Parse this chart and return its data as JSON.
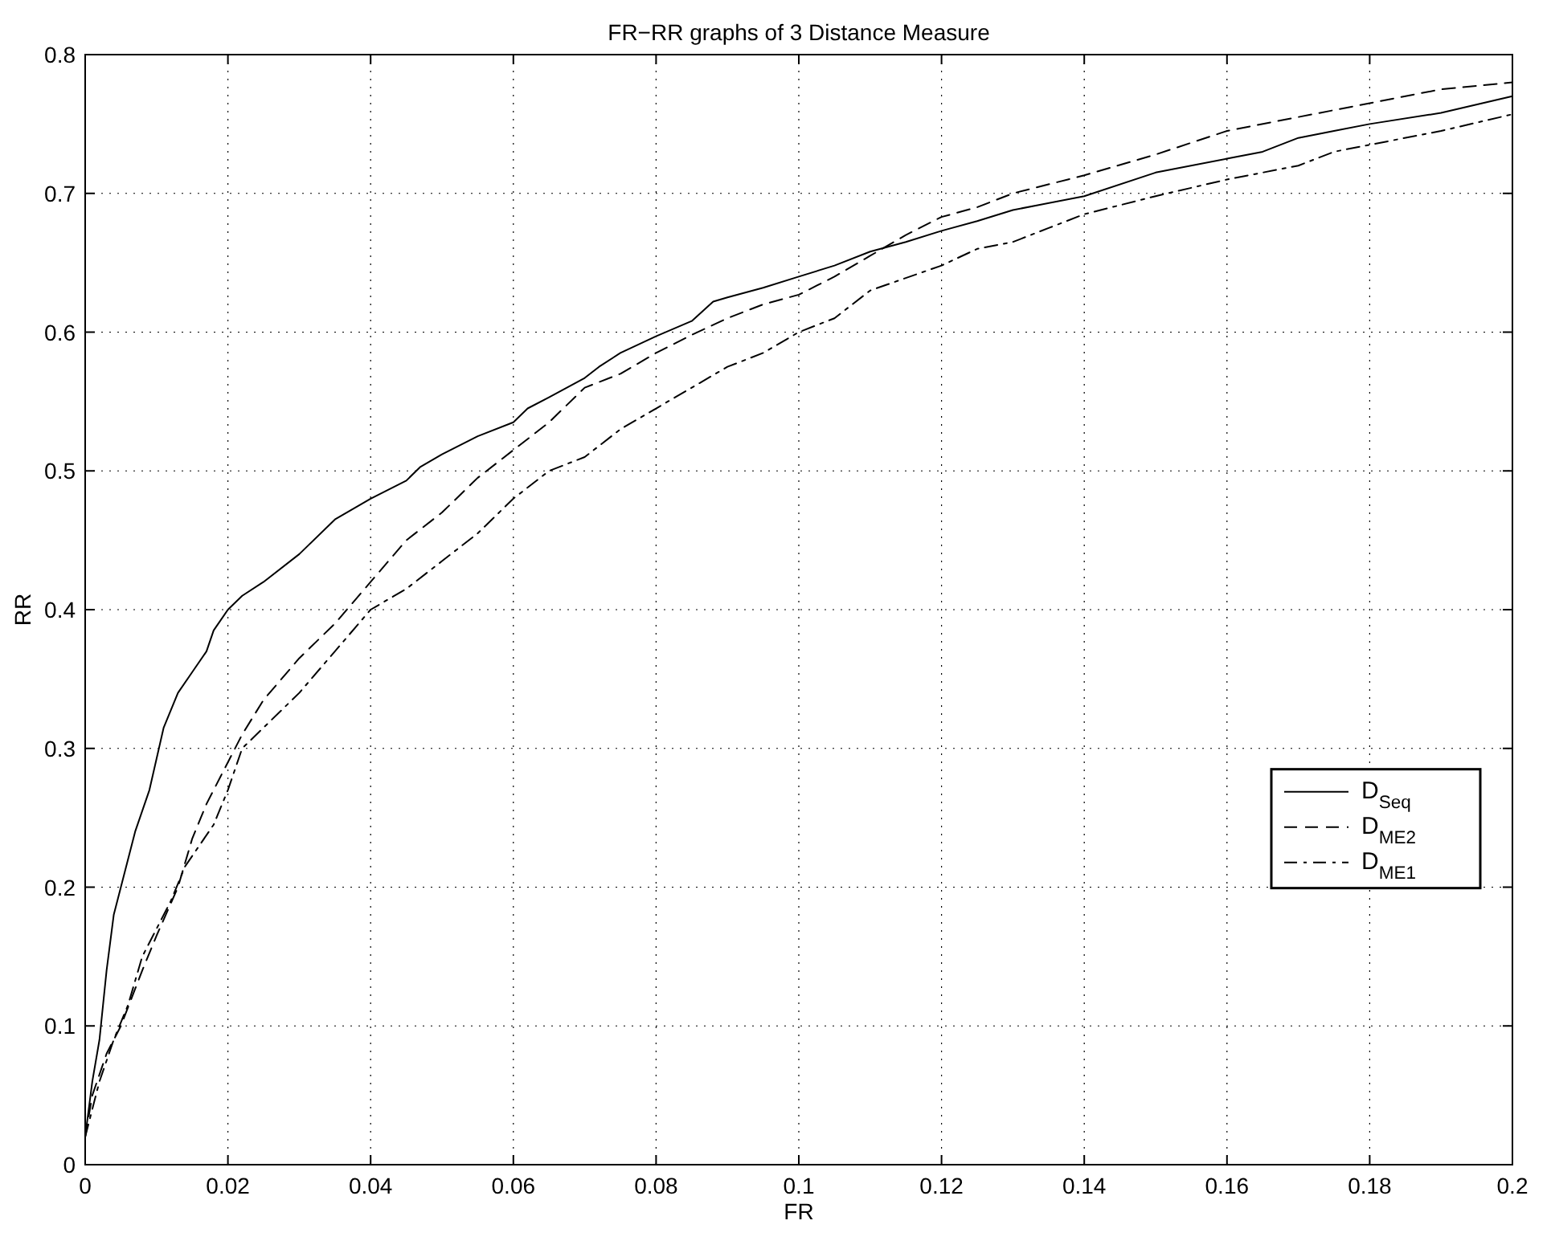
{
  "chart_data": {
    "type": "line",
    "title": "FR−RR graphs of 3 Distance Measure",
    "xlabel": "FR",
    "ylabel": "RR",
    "xlim": [
      0,
      0.2
    ],
    "ylim": [
      0,
      0.8
    ],
    "xticks": [
      0,
      0.02,
      0.04,
      0.06,
      0.08,
      0.1,
      0.12,
      0.14,
      0.16,
      0.18,
      0.2
    ],
    "yticks": [
      0,
      0.1,
      0.2,
      0.3,
      0.4,
      0.5,
      0.6,
      0.7,
      0.8
    ],
    "grid": true,
    "legend": "right",
    "marker": "none",
    "series": [
      {
        "name": "D$_{Seq}$",
        "color": "#000000",
        "line_style": "solid",
        "x": [
          0,
          0.001,
          0.002,
          0.003,
          0.004,
          0.005,
          0.007,
          0.009,
          0.011,
          0.013,
          0.015,
          0.017,
          0.018,
          0.02,
          0.022,
          0.025,
          0.03,
          0.035,
          0.04,
          0.045,
          0.047,
          0.05,
          0.055,
          0.06,
          0.062,
          0.065,
          0.07,
          0.072,
          0.075,
          0.08,
          0.085,
          0.088,
          0.09,
          0.095,
          0.1,
          0.105,
          0.11,
          0.115,
          0.12,
          0.125,
          0.13,
          0.14,
          0.15,
          0.16,
          0.165,
          0.17,
          0.175,
          0.18,
          0.19,
          0.2
        ],
        "values": [
          0.02,
          0.06,
          0.09,
          0.14,
          0.18,
          0.2,
          0.24,
          0.27,
          0.315,
          0.34,
          0.355,
          0.37,
          0.385,
          0.4,
          0.41,
          0.42,
          0.44,
          0.465,
          0.48,
          0.493,
          0.503,
          0.512,
          0.525,
          0.535,
          0.545,
          0.553,
          0.567,
          0.575,
          0.585,
          0.597,
          0.608,
          0.622,
          0.625,
          0.632,
          0.64,
          0.648,
          0.658,
          0.665,
          0.673,
          0.68,
          0.688,
          0.698,
          0.715,
          0.725,
          0.73,
          0.74,
          0.745,
          0.75,
          0.758,
          0.77
        ]
      },
      {
        "name": "D$_{ME2}$",
        "color": "#000000",
        "line_style": "dashed",
        "x": [
          0,
          0.001,
          0.003,
          0.005,
          0.008,
          0.01,
          0.013,
          0.015,
          0.017,
          0.019,
          0.022,
          0.025,
          0.03,
          0.035,
          0.04,
          0.045,
          0.05,
          0.055,
          0.06,
          0.065,
          0.07,
          0.075,
          0.08,
          0.085,
          0.09,
          0.095,
          0.1,
          0.105,
          0.11,
          0.115,
          0.12,
          0.125,
          0.13,
          0.14,
          0.15,
          0.16,
          0.17,
          0.18,
          0.19,
          0.2
        ],
        "values": [
          0.02,
          0.05,
          0.08,
          0.1,
          0.14,
          0.165,
          0.2,
          0.235,
          0.26,
          0.28,
          0.31,
          0.335,
          0.365,
          0.39,
          0.42,
          0.45,
          0.47,
          0.495,
          0.515,
          0.535,
          0.56,
          0.57,
          0.585,
          0.598,
          0.61,
          0.62,
          0.627,
          0.64,
          0.655,
          0.67,
          0.683,
          0.69,
          0.7,
          0.713,
          0.728,
          0.745,
          0.755,
          0.765,
          0.775,
          0.78
        ]
      },
      {
        "name": "D$_{ME1}$",
        "color": "#000000",
        "line_style": "dashdot",
        "x": [
          0,
          0.002,
          0.004,
          0.006,
          0.008,
          0.01,
          0.012,
          0.014,
          0.016,
          0.018,
          0.02,
          0.022,
          0.025,
          0.03,
          0.035,
          0.04,
          0.045,
          0.05,
          0.055,
          0.06,
          0.065,
          0.07,
          0.075,
          0.08,
          0.085,
          0.09,
          0.095,
          0.1,
          0.105,
          0.11,
          0.12,
          0.125,
          0.13,
          0.135,
          0.14,
          0.15,
          0.16,
          0.17,
          0.175,
          0.18,
          0.19,
          0.2
        ],
        "values": [
          0.02,
          0.06,
          0.09,
          0.115,
          0.15,
          0.17,
          0.19,
          0.215,
          0.23,
          0.245,
          0.27,
          0.3,
          0.315,
          0.34,
          0.37,
          0.4,
          0.415,
          0.435,
          0.455,
          0.48,
          0.5,
          0.51,
          0.53,
          0.545,
          0.56,
          0.575,
          0.585,
          0.6,
          0.61,
          0.63,
          0.648,
          0.66,
          0.665,
          0.675,
          0.685,
          0.698,
          0.71,
          0.72,
          0.73,
          0.735,
          0.745,
          0.757
        ]
      }
    ]
  }
}
